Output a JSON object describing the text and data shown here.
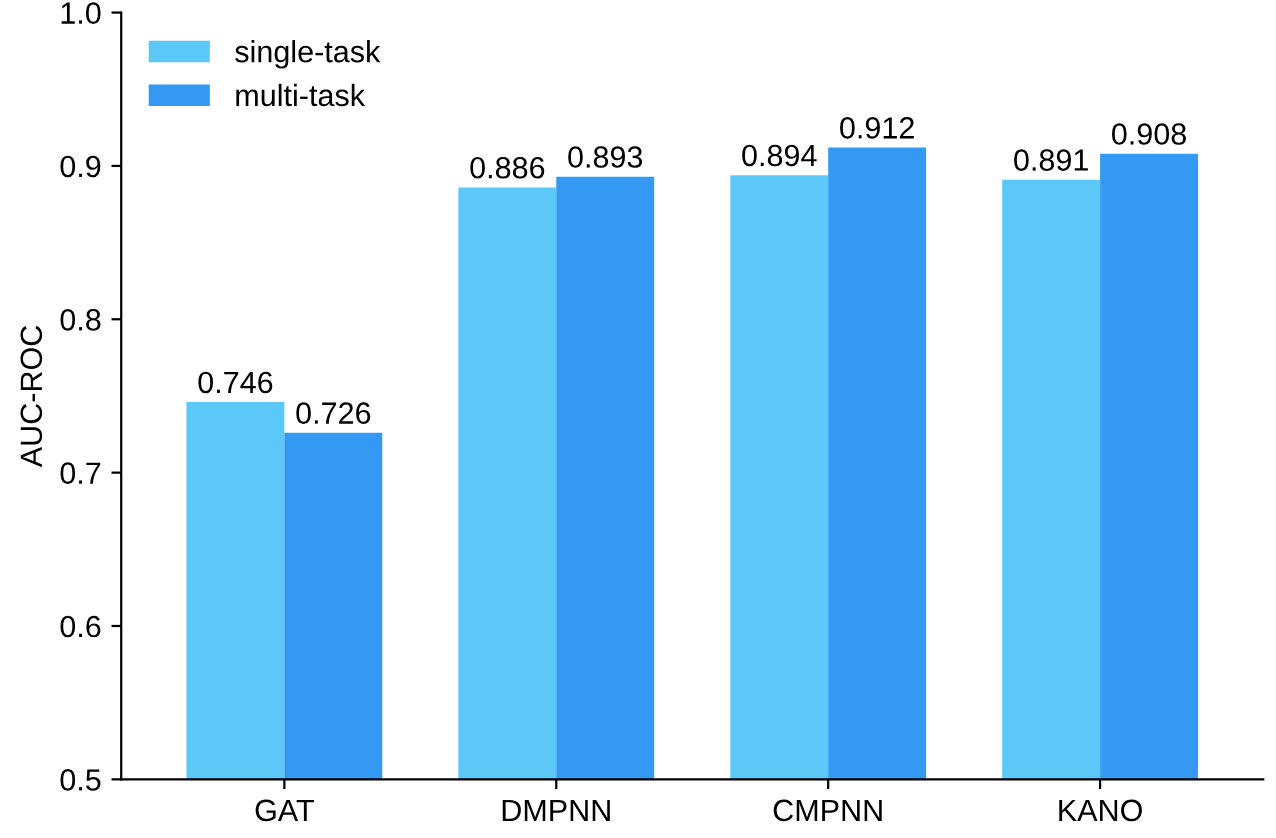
{
  "chart_data": {
    "type": "bar",
    "ylabel": "AUC-ROC",
    "categories": [
      "GAT",
      "DMPNN",
      "CMPNN",
      "KANO"
    ],
    "series": [
      {
        "name": "single-task",
        "color": "#5bc8f7",
        "values": [
          0.746,
          0.886,
          0.894,
          0.891
        ]
      },
      {
        "name": "multi-task",
        "color": "#3399f2",
        "values": [
          0.726,
          0.893,
          0.912,
          0.908
        ]
      }
    ],
    "ylim": [
      0.5,
      1.0
    ],
    "yticks": [
      0.5,
      0.6,
      0.7,
      0.8,
      0.9,
      {
        "value": 1.0,
        "label": "1.0"
      }
    ],
    "data_labels": true,
    "legend": "top left",
    "grid": false
  }
}
